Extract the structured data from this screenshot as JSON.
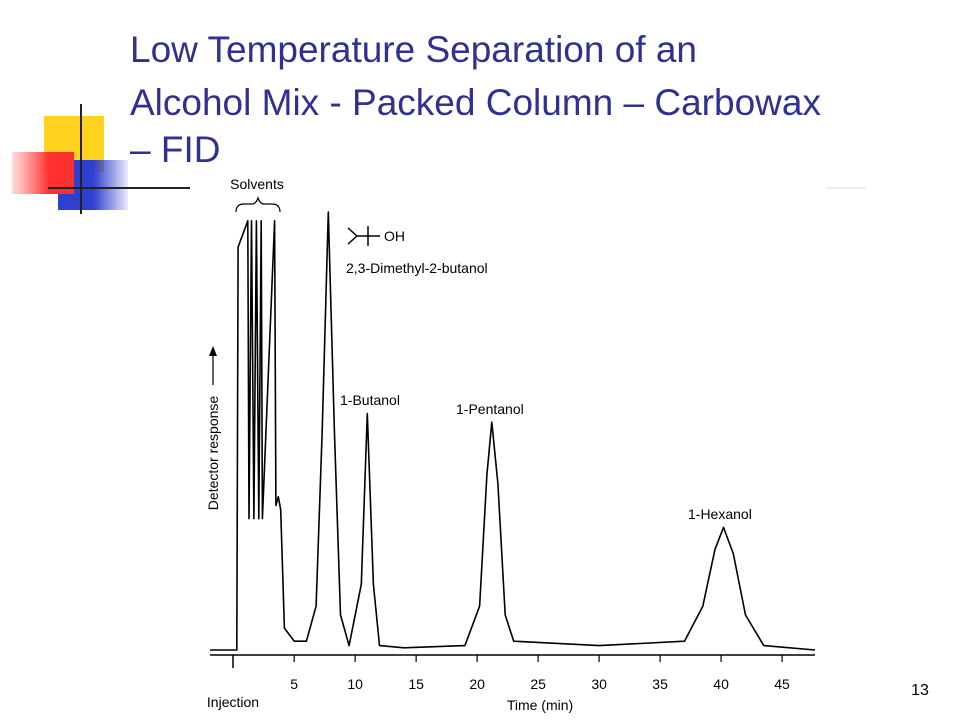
{
  "slide": {
    "title": [
      "Low Temperature Separation of an",
      "Alcohol Mix -  Packed Column – Carbowax",
      "– FID"
    ],
    "number": "13"
  },
  "chart_data": {
    "type": "line",
    "color": "#000000",
    "xlabel": "Time (min)",
    "ylabel": "Detector response",
    "xlim": [
      -1.9,
      47.7
    ],
    "ylim": [
      0,
      100
    ],
    "xticks": [
      5,
      10,
      15,
      20,
      25,
      30,
      35,
      40,
      45
    ],
    "x": [
      -1.9,
      0.3,
      0.4,
      1.2,
      1.3,
      1.5,
      1.7,
      1.9,
      2.1,
      2.3,
      2.4,
      3.4,
      3.5,
      3.7,
      3.9,
      4.2,
      5,
      6,
      6.8,
      7.3,
      7.8,
      8.3,
      8.8,
      9.5,
      10.5,
      11.0,
      11.5,
      12,
      14,
      19,
      20.2,
      20.8,
      21.2,
      21.7,
      22.3,
      23,
      30,
      37,
      38.5,
      39.5,
      40.2,
      41,
      42,
      43.5,
      47.7
    ],
    "values": [
      0,
      0,
      92,
      98,
      30,
      98,
      30,
      98,
      30,
      98,
      30,
      98,
      33,
      35,
      32,
      5,
      2,
      2,
      10,
      50,
      100,
      50,
      8,
      1,
      15,
      54,
      15,
      1,
      0.5,
      1,
      10,
      40,
      52,
      38,
      8,
      2,
      1,
      2,
      10,
      23,
      28,
      22,
      8,
      1,
      0
    ],
    "annotations": [
      "Solvents",
      "OH",
      "2,3-Dimethyl-2-butanol",
      "1-Butanol",
      "1-Pentanol",
      "1-Hexanol",
      "Injection"
    ]
  }
}
